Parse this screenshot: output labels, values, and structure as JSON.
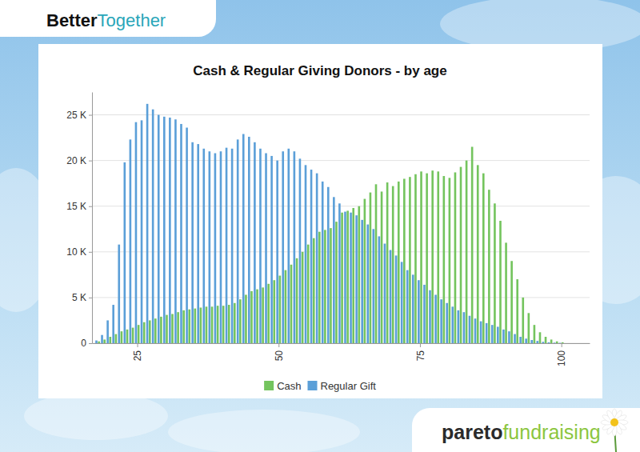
{
  "header": {
    "brand_bold": "Better",
    "brand_light": "Together"
  },
  "footer": {
    "brand_bold": "pareto",
    "brand_light": "fundraising"
  },
  "chart_data": {
    "type": "bar",
    "title": "Cash & Regular Giving Donors - by age",
    "x": [
      18,
      19,
      20,
      21,
      22,
      23,
      24,
      25,
      26,
      27,
      28,
      29,
      30,
      31,
      32,
      33,
      34,
      35,
      36,
      37,
      38,
      39,
      40,
      41,
      42,
      43,
      44,
      45,
      46,
      47,
      48,
      49,
      50,
      51,
      52,
      53,
      54,
      55,
      56,
      57,
      58,
      59,
      60,
      61,
      62,
      63,
      64,
      65,
      66,
      67,
      68,
      69,
      70,
      71,
      72,
      73,
      74,
      75,
      76,
      77,
      78,
      79,
      80,
      81,
      82,
      83,
      84,
      85,
      86,
      87,
      88,
      89,
      90,
      91,
      92,
      93,
      94,
      95,
      96,
      97,
      98,
      99,
      100
    ],
    "series": [
      {
        "name": "Cash",
        "color": "#74c45e",
        "values": [
          200,
          400,
          700,
          1000,
          1300,
          1500,
          1700,
          2000,
          2300,
          2500,
          2700,
          2900,
          3100,
          3200,
          3400,
          3600,
          3700,
          3800,
          3900,
          4000,
          4000,
          4100,
          4100,
          4200,
          4400,
          4800,
          5300,
          5700,
          5900,
          6100,
          6500,
          6900,
          7400,
          8000,
          8600,
          9300,
          10000,
          10800,
          11500,
          12200,
          12400,
          12600,
          13300,
          14300,
          14500,
          14800,
          15000,
          15800,
          16500,
          17400,
          16600,
          17600,
          17200,
          17700,
          18000,
          18200,
          18500,
          18800,
          18600,
          18900,
          18800,
          18300,
          18100,
          18700,
          19300,
          20000,
          21500,
          19500,
          18600,
          16800,
          15300,
          13400,
          11000,
          9000,
          7000,
          5000,
          3300,
          2000,
          1200,
          700,
          400,
          200,
          100
        ]
      },
      {
        "name": "Regular Gift",
        "color": "#5b9fd8",
        "values": [
          300,
          900,
          2500,
          4200,
          10800,
          19800,
          22300,
          24200,
          24400,
          26200,
          25600,
          25000,
          24800,
          24700,
          24500,
          24000,
          23600,
          22000,
          21800,
          21300,
          21000,
          20800,
          21000,
          21400,
          21300,
          22300,
          22900,
          22600,
          22000,
          21300,
          20800,
          20500,
          20000,
          21000,
          21300,
          21000,
          20200,
          19500,
          19000,
          18600,
          17700,
          17100,
          16000,
          15300,
          14400,
          14300,
          14000,
          13500,
          13000,
          12500,
          11700,
          10900,
          10200,
          9600,
          8900,
          8000,
          7500,
          6900,
          6400,
          5800,
          5300,
          4800,
          4400,
          4000,
          3600,
          3400,
          3000,
          2700,
          2400,
          2200,
          2000,
          1800,
          1500,
          1300,
          1000,
          700,
          500,
          350,
          250,
          150,
          100,
          60,
          40
        ]
      }
    ],
    "xlim": [
      17,
      105
    ],
    "xticks": [
      25,
      50,
      75,
      100
    ],
    "ylim": [
      0,
      27500
    ],
    "yticks": [
      0,
      {
        "value": 5000,
        "label": "5 K"
      },
      {
        "value": 10000,
        "label": "10 K"
      },
      {
        "value": 15000,
        "label": "15 K"
      },
      {
        "value": 20000,
        "label": "20 K"
      },
      {
        "value": 25000,
        "label": "25 K"
      }
    ],
    "grid": true,
    "legend": "bottom"
  }
}
